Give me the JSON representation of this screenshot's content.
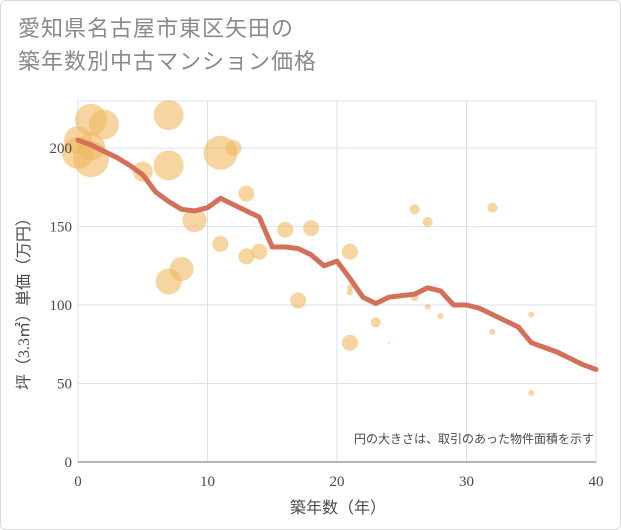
{
  "title_lines": [
    "愛知県名古屋市東区矢田の",
    "築年数別中古マンション価格"
  ],
  "chart_data": {
    "type": "scatter",
    "xlabel": "築年数（年）",
    "ylabel": "坪（3.3㎡）単価（万円）",
    "xlim": [
      0,
      40
    ],
    "ylim": [
      0,
      230
    ],
    "xticks": [
      0,
      10,
      20,
      30,
      40
    ],
    "yticks": [
      0,
      50,
      100,
      150,
      200
    ],
    "grid": true,
    "annotation": "円の大きさは、取引のあった物件面積を示す",
    "colors": {
      "bubble": "#f0b961",
      "line": "#d4705a",
      "grid": "#d6e2ec"
    },
    "bubbles": [
      {
        "x": 0,
        "y": 197,
        "size": 16
      },
      {
        "x": 0,
        "y": 205,
        "size": 14
      },
      {
        "x": 1,
        "y": 218,
        "size": 16
      },
      {
        "x": 1,
        "y": 193,
        "size": 18
      },
      {
        "x": 1,
        "y": 201,
        "size": 14
      },
      {
        "x": 2,
        "y": 215,
        "size": 15
      },
      {
        "x": 5,
        "y": 185,
        "size": 10
      },
      {
        "x": 7,
        "y": 221,
        "size": 15
      },
      {
        "x": 7,
        "y": 189,
        "size": 15
      },
      {
        "x": 7,
        "y": 115,
        "size": 13
      },
      {
        "x": 8,
        "y": 123,
        "size": 12
      },
      {
        "x": 9,
        "y": 154,
        "size": 12
      },
      {
        "x": 11,
        "y": 197,
        "size": 17
      },
      {
        "x": 12,
        "y": 200,
        "size": 8
      },
      {
        "x": 11,
        "y": 139,
        "size": 8
      },
      {
        "x": 13,
        "y": 171,
        "size": 8
      },
      {
        "x": 13,
        "y": 131,
        "size": 8
      },
      {
        "x": 14,
        "y": 134,
        "size": 8
      },
      {
        "x": 16,
        "y": 148,
        "size": 8
      },
      {
        "x": 17,
        "y": 103,
        "size": 8
      },
      {
        "x": 18,
        "y": 149,
        "size": 8
      },
      {
        "x": 21,
        "y": 134,
        "size": 8
      },
      {
        "x": 21,
        "y": 76,
        "size": 8
      },
      {
        "x": 21,
        "y": 108,
        "size": 3
      },
      {
        "x": 21,
        "y": 111,
        "size": 3
      },
      {
        "x": 23,
        "y": 89,
        "size": 5
      },
      {
        "x": 24,
        "y": 76,
        "size": 1
      },
      {
        "x": 26,
        "y": 161,
        "size": 5
      },
      {
        "x": 26,
        "y": 105,
        "size": 4
      },
      {
        "x": 27,
        "y": 153,
        "size": 5
      },
      {
        "x": 27,
        "y": 99,
        "size": 3
      },
      {
        "x": 28,
        "y": 93,
        "size": 3
      },
      {
        "x": 32,
        "y": 162,
        "size": 5
      },
      {
        "x": 32,
        "y": 83,
        "size": 3
      },
      {
        "x": 35,
        "y": 94,
        "size": 3
      },
      {
        "x": 35,
        "y": 44,
        "size": 3
      }
    ],
    "trend": {
      "x": [
        0,
        1,
        2,
        3,
        4,
        5,
        6,
        7,
        8,
        9,
        10,
        11,
        12,
        13,
        14,
        15,
        16,
        17,
        18,
        19,
        20,
        21,
        22,
        23,
        24,
        25,
        26,
        27,
        28,
        29,
        30,
        31,
        32,
        33,
        34,
        35,
        36,
        37,
        38,
        39,
        40
      ],
      "y": [
        205,
        202,
        198,
        194,
        189,
        183,
        172,
        166,
        161,
        160,
        162,
        168,
        164,
        160,
        156,
        137,
        137,
        136,
        132,
        125,
        128,
        117,
        105,
        101,
        105,
        106,
        107,
        111,
        109,
        100,
        100,
        98,
        94,
        90,
        86,
        76,
        73,
        70,
        66,
        62,
        59
      ]
    }
  }
}
